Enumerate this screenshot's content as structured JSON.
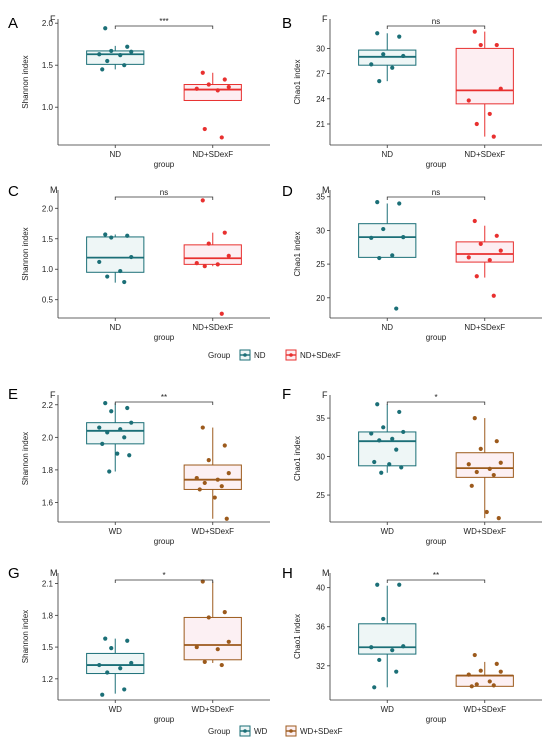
{
  "chart_data": [
    {
      "panel": "A",
      "sex": "F",
      "type": "box",
      "categories": [
        "ND",
        "ND+SDexF"
      ],
      "xlabel": "group",
      "ylabel": "Shannon index",
      "ylim": [
        0.55,
        2.05
      ],
      "yticks": [
        1.0,
        1.5,
        2.0
      ],
      "ytick_labels": [
        "1.0",
        "1.5",
        "2.0"
      ],
      "groups": [
        {
          "name": "ND",
          "color": "#1b6f77",
          "fill": "#eef6f6",
          "box": {
            "q1": 1.51,
            "median": 1.63,
            "q3": 1.67,
            "whisker_low": 1.45,
            "whisker_high": 1.73
          },
          "points": [
            1.94,
            1.72,
            1.67,
            1.66,
            1.63,
            1.62,
            1.55,
            1.5,
            1.45
          ]
        },
        {
          "name": "ND+SDexF",
          "color": "#e8302f",
          "fill": "#fdeef2",
          "box": {
            "q1": 1.08,
            "median": 1.21,
            "q3": 1.27,
            "whisker_low": 1.08,
            "whisker_high": 1.41
          },
          "points": [
            1.41,
            1.33,
            1.27,
            1.24,
            1.22,
            1.2,
            0.74,
            0.64
          ]
        }
      ],
      "significance": "***"
    },
    {
      "panel": "B",
      "sex": "F",
      "type": "box",
      "categories": [
        "ND",
        "ND+SDexF"
      ],
      "xlabel": "group",
      "ylabel": "Chao1 index",
      "ylim": [
        18.5,
        33.5
      ],
      "yticks": [
        21,
        24,
        27,
        30
      ],
      "ytick_labels": [
        "21",
        "24",
        "27",
        "30"
      ],
      "groups": [
        {
          "name": "ND",
          "color": "#1b6f77",
          "fill": "#eef6f6",
          "box": {
            "q1": 28.0,
            "median": 29.0,
            "q3": 29.8,
            "whisker_low": 26.1,
            "whisker_high": 31.8
          },
          "points": [
            31.8,
            31.4,
            29.3,
            29.1,
            28.1,
            27.7,
            26.1
          ]
        },
        {
          "name": "ND+SDexF",
          "color": "#e8302f",
          "fill": "#fdeef2",
          "box": {
            "q1": 23.4,
            "median": 25.0,
            "q3": 30.0,
            "whisker_low": 19.5,
            "whisker_high": 32.0
          },
          "points": [
            32.0,
            30.4,
            30.4,
            25.2,
            23.8,
            22.2,
            21.0,
            19.5
          ]
        }
      ],
      "significance": "ns"
    },
    {
      "panel": "C",
      "sex": "M",
      "type": "box",
      "categories": [
        "ND",
        "ND+SDexF"
      ],
      "xlabel": "group",
      "ylabel": "Shannon index",
      "ylim": [
        0.2,
        2.3
      ],
      "yticks": [
        0.5,
        1.0,
        1.5,
        2.0
      ],
      "ytick_labels": [
        "0.5",
        "1.0",
        "1.5",
        "2.0"
      ],
      "groups": [
        {
          "name": "ND",
          "color": "#1b6f77",
          "fill": "#eef6f6",
          "box": {
            "q1": 0.95,
            "median": 1.19,
            "q3": 1.53,
            "whisker_low": 0.78,
            "whisker_high": 1.57
          },
          "points": [
            1.57,
            1.55,
            1.52,
            1.2,
            1.12,
            0.97,
            0.88,
            0.79
          ]
        },
        {
          "name": "ND+SDexF",
          "color": "#e8302f",
          "fill": "#fdeef2",
          "box": {
            "q1": 1.08,
            "median": 1.18,
            "q3": 1.4,
            "whisker_low": 1.05,
            "whisker_high": 1.6
          },
          "points": [
            2.13,
            1.6,
            1.42,
            1.22,
            1.1,
            1.08,
            1.05,
            0.27
          ]
        }
      ],
      "significance": "ns"
    },
    {
      "panel": "D",
      "sex": "M",
      "type": "box",
      "categories": [
        "ND",
        "ND+SDexF"
      ],
      "xlabel": "group",
      "ylabel": "Chao1 index",
      "ylim": [
        17.0,
        36.0
      ],
      "yticks": [
        20,
        25,
        30,
        35
      ],
      "ytick_labels": [
        "20",
        "25",
        "30",
        "35"
      ],
      "groups": [
        {
          "name": "ND",
          "color": "#1b6f77",
          "fill": "#eef6f6",
          "box": {
            "q1": 26.0,
            "median": 29.0,
            "q3": 31.0,
            "whisker_low": 26.0,
            "whisker_high": 34.0
          },
          "points": [
            34.2,
            34.0,
            30.2,
            29.0,
            28.9,
            26.3,
            25.9,
            18.4
          ]
        },
        {
          "name": "ND+SDexF",
          "color": "#e8302f",
          "fill": "#fdeef2",
          "box": {
            "q1": 25.3,
            "median": 26.5,
            "q3": 28.3,
            "whisker_low": 23.0,
            "whisker_high": 30.7
          },
          "points": [
            31.4,
            29.2,
            28.0,
            27.0,
            26.0,
            25.6,
            23.2,
            20.3
          ]
        }
      ],
      "significance": "ns"
    },
    {
      "panel": "E",
      "sex": "F",
      "type": "box",
      "categories": [
        "WD",
        "WD+SDexF"
      ],
      "xlabel": "group",
      "ylabel": "Shannon index",
      "ylim": [
        1.48,
        2.26
      ],
      "yticks": [
        1.6,
        1.8,
        2.0,
        2.2
      ],
      "ytick_labels": [
        "1.6",
        "1.8",
        "2.0",
        "2.2"
      ],
      "groups": [
        {
          "name": "WD",
          "color": "#1b6f77",
          "fill": "#eef6f6",
          "box": {
            "q1": 1.96,
            "median": 2.04,
            "q3": 2.09,
            "whisker_low": 1.79,
            "whisker_high": 2.21
          },
          "points": [
            2.21,
            2.18,
            2.16,
            2.09,
            2.06,
            2.05,
            2.03,
            2.0,
            1.96,
            1.9,
            1.89,
            1.79
          ]
        },
        {
          "name": "WD+SDexF",
          "color": "#9c5a1c",
          "fill": "#fcf0f3",
          "box": {
            "q1": 1.68,
            "median": 1.74,
            "q3": 1.83,
            "whisker_low": 1.5,
            "whisker_high": 2.06
          },
          "points": [
            2.06,
            1.95,
            1.86,
            1.78,
            1.75,
            1.74,
            1.72,
            1.7,
            1.68,
            1.63,
            1.5
          ]
        }
      ],
      "significance": "**"
    },
    {
      "panel": "F",
      "sex": "F",
      "type": "box",
      "categories": [
        "WD",
        "WD+SDexF"
      ],
      "xlabel": "group",
      "ylabel": "Chao1 index",
      "ylim": [
        21.5,
        38.0
      ],
      "yticks": [
        25,
        30,
        35
      ],
      "ytick_labels": [
        "25",
        "30",
        "35"
      ],
      "groups": [
        {
          "name": "WD",
          "color": "#1b6f77",
          "fill": "#eef6f6",
          "box": {
            "q1": 28.8,
            "median": 32.0,
            "q3": 33.2,
            "whisker_low": 27.9,
            "whisker_high": 36.8
          },
          "points": [
            36.8,
            35.8,
            33.8,
            33.2,
            33.0,
            32.3,
            32.1,
            30.9,
            29.3,
            29.0,
            28.6,
            27.9
          ]
        },
        {
          "name": "WD+SDexF",
          "color": "#9c5a1c",
          "fill": "#fcf0f3",
          "box": {
            "q1": 27.3,
            "median": 28.5,
            "q3": 30.5,
            "whisker_low": 22.0,
            "whisker_high": 35.0
          },
          "points": [
            35.0,
            32.0,
            31.0,
            29.2,
            29.0,
            28.4,
            28.0,
            27.6,
            26.2,
            22.8,
            22.0
          ]
        }
      ],
      "significance": "*"
    },
    {
      "panel": "G",
      "sex": "M",
      "type": "box",
      "categories": [
        "WD",
        "WD+SDexF"
      ],
      "xlabel": "group",
      "ylabel": "Shannon index",
      "ylim": [
        1.0,
        2.2
      ],
      "yticks": [
        1.2,
        1.5,
        1.8,
        2.1
      ],
      "ytick_labels": [
        "1.2",
        "1.5",
        "1.8",
        "2.1"
      ],
      "groups": [
        {
          "name": "WD",
          "color": "#1b6f77",
          "fill": "#eef6f6",
          "box": {
            "q1": 1.25,
            "median": 1.33,
            "q3": 1.44,
            "whisker_low": 1.06,
            "whisker_high": 1.58
          },
          "points": [
            1.58,
            1.56,
            1.49,
            1.35,
            1.33,
            1.3,
            1.26,
            1.1,
            1.05
          ]
        },
        {
          "name": "WD+SDexF",
          "color": "#9c5a1c",
          "fill": "#fcf0f3",
          "box": {
            "q1": 1.38,
            "median": 1.52,
            "q3": 1.78,
            "whisker_low": 1.35,
            "whisker_high": 2.12
          },
          "points": [
            2.12,
            1.83,
            1.78,
            1.55,
            1.5,
            1.48,
            1.36,
            1.33
          ]
        }
      ],
      "significance": "*"
    },
    {
      "panel": "H",
      "sex": "M",
      "type": "box",
      "categories": [
        "WD",
        "WD+SDexF"
      ],
      "xlabel": "group",
      "ylabel": "Chao1 index",
      "ylim": [
        28.5,
        41.5
      ],
      "yticks": [
        32,
        36,
        40
      ],
      "ytick_labels": [
        "32",
        "36",
        "40"
      ],
      "groups": [
        {
          "name": "WD",
          "color": "#1b6f77",
          "fill": "#eef6f6",
          "box": {
            "q1": 33.2,
            "median": 33.9,
            "q3": 36.3,
            "whisker_low": 29.8,
            "whisker_high": 40.2
          },
          "points": [
            40.3,
            40.3,
            36.8,
            34.0,
            33.9,
            33.6,
            32.6,
            31.4,
            29.8
          ]
        },
        {
          "name": "WD+SDexF",
          "color": "#9c5a1c",
          "fill": "#fcf0f3",
          "box": {
            "q1": 29.9,
            "median": 31.0,
            "q3": 31.0,
            "whisker_low": 29.9,
            "whisker_high": 32.4
          },
          "points": [
            33.1,
            32.2,
            31.5,
            31.4,
            31.1,
            30.4,
            30.1,
            30.0,
            29.9
          ]
        }
      ],
      "significance": "**"
    }
  ],
  "legends": [
    {
      "title": "Group",
      "items": [
        {
          "label": "ND",
          "color": "#1b6f77"
        },
        {
          "label": "ND+SDexF",
          "color": "#e8302f"
        }
      ]
    },
    {
      "title": "Group",
      "items": [
        {
          "label": "WD",
          "color": "#1b6f77"
        },
        {
          "label": "WD+SDexF",
          "color": "#9c5a1c"
        }
      ]
    }
  ]
}
